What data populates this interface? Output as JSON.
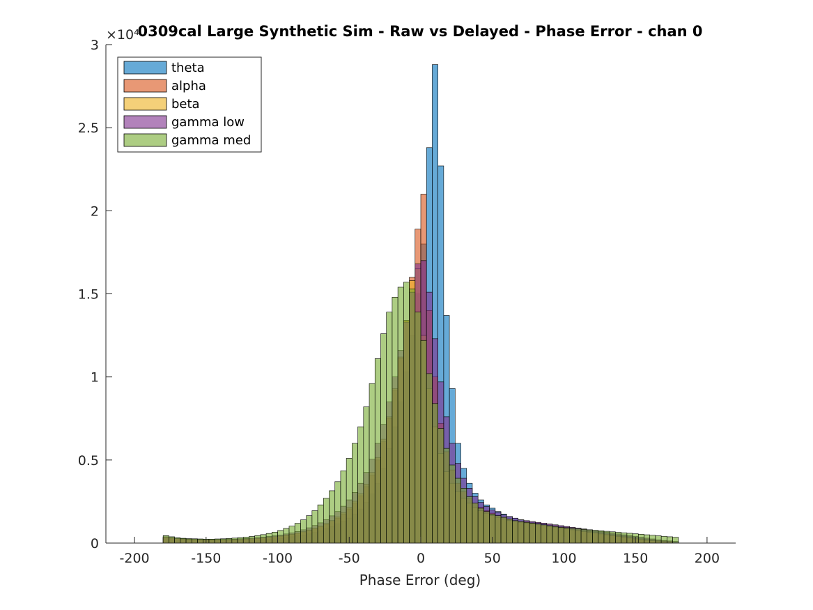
{
  "chart_data": {
    "type": "bar",
    "title": "0309cal Large Synthetic Sim - Raw vs Delayed - Phase Error - chan 0",
    "xlabel": "Phase Error (deg)",
    "ylabel": "",
    "y_exponent_label": "×10⁴",
    "xlim": [
      -220,
      220
    ],
    "ylim": [
      0,
      30000
    ],
    "xticks": [
      -200,
      -150,
      -100,
      -50,
      0,
      50,
      100,
      150,
      200
    ],
    "xtick_labels": [
      "-200",
      "-150",
      "-100",
      "-50",
      "0",
      "50",
      "100",
      "150",
      "200"
    ],
    "yticks": [
      0,
      5000,
      10000,
      15000,
      20000,
      25000,
      30000
    ],
    "ytick_labels": [
      "0",
      "0.5",
      "1",
      "1.5",
      "2",
      "2.5",
      "3"
    ],
    "bin_edges_start": -180,
    "bin_width": 4,
    "legend_position": "top-left",
    "grid": false,
    "series": [
      {
        "name": "theta",
        "color": "#0072BD",
        "values": [
          300,
          250,
          200,
          180,
          160,
          150,
          140,
          130,
          130,
          130,
          130,
          140,
          150,
          160,
          170,
          180,
          200,
          210,
          230,
          260,
          290,
          330,
          380,
          430,
          480,
          550,
          640,
          740,
          860,
          1000,
          1150,
          1300,
          1500,
          1750,
          2050,
          2450,
          2950,
          3600,
          4500,
          5700,
          7000,
          8500,
          10300,
          12500,
          15000,
          18000,
          23800,
          28800,
          22700,
          13700,
          9300,
          6000,
          4500,
          3600,
          3000,
          2600,
          2300,
          2100,
          1900,
          1750,
          1600,
          1500,
          1400,
          1300,
          1250,
          1200,
          1150,
          1100,
          1050,
          1000,
          950,
          900,
          850,
          800,
          750,
          700,
          650,
          600,
          550,
          500,
          450,
          400,
          350,
          300,
          250,
          200,
          150,
          120,
          100,
          80
        ]
      },
      {
        "name": "alpha",
        "color": "#D95319",
        "values": [
          350,
          300,
          260,
          230,
          210,
          200,
          190,
          180,
          180,
          180,
          180,
          190,
          200,
          210,
          230,
          250,
          270,
          300,
          330,
          360,
          400,
          450,
          510,
          580,
          660,
          750,
          860,
          980,
          1130,
          1300,
          1500,
          1750,
          2050,
          2400,
          2850,
          3400,
          4100,
          5000,
          6100,
          7500,
          9200,
          11100,
          13400,
          16000,
          18900,
          21000,
          14000,
          10000,
          7200,
          5500,
          4400,
          3600,
          3100,
          2700,
          2400,
          2150,
          1950,
          1800,
          1650,
          1550,
          1450,
          1350,
          1300,
          1250,
          1200,
          1150,
          1100,
          1050,
          1000,
          950,
          900,
          850,
          800,
          750,
          700,
          650,
          600,
          550,
          500,
          450,
          400,
          350,
          300,
          250,
          200,
          170,
          140,
          110,
          90
        ]
      },
      {
        "name": "beta",
        "color": "#EDB120",
        "values": [
          350,
          300,
          270,
          240,
          220,
          210,
          200,
          190,
          190,
          190,
          190,
          200,
          210,
          220,
          240,
          260,
          290,
          320,
          350,
          390,
          430,
          480,
          540,
          610,
          690,
          790,
          900,
          1030,
          1180,
          1360,
          1580,
          1840,
          2150,
          2520,
          2980,
          3550,
          4250,
          5150,
          6250,
          7600,
          9300,
          11200,
          13400,
          15800,
          16500,
          12500,
          9300,
          7000,
          5400,
          4300,
          3600,
          3100,
          2700,
          2400,
          2150,
          1950,
          1800,
          1650,
          1550,
          1450,
          1350,
          1300,
          1250,
          1200,
          1150,
          1100,
          1050,
          1000,
          950,
          900,
          850,
          800,
          750,
          700,
          650,
          600,
          550,
          500,
          450,
          400,
          350,
          300,
          250,
          200,
          170,
          140,
          110,
          90
        ]
      },
      {
        "name": "gamma low",
        "color": "#7E2F8E",
        "values": [
          380,
          330,
          290,
          260,
          240,
          230,
          220,
          210,
          210,
          210,
          220,
          230,
          240,
          260,
          280,
          300,
          330,
          360,
          400,
          440,
          490,
          550,
          620,
          700,
          800,
          920,
          1060,
          1220,
          1410,
          1640,
          1900,
          2220,
          2600,
          3050,
          3600,
          4250,
          5050,
          6000,
          7150,
          8500,
          10000,
          11600,
          13300,
          15100,
          16800,
          17000,
          15100,
          12300,
          9700,
          7600,
          6000,
          4800,
          3900,
          3300,
          2800,
          2450,
          2200,
          2000,
          1850,
          1700,
          1600,
          1500,
          1400,
          1350,
          1300,
          1250,
          1200,
          1150,
          1100,
          1050,
          1000,
          950,
          900,
          850,
          800,
          750,
          700,
          650,
          600,
          550,
          500,
          450,
          400,
          350,
          300,
          250,
          200,
          160,
          130,
          100
        ]
      },
      {
        "name": "gamma med",
        "color": "#77AC30",
        "values": [
          450,
          380,
          320,
          290,
          270,
          260,
          250,
          240,
          240,
          250,
          260,
          280,
          300,
          330,
          360,
          400,
          450,
          510,
          580,
          660,
          760,
          880,
          1020,
          1190,
          1400,
          1650,
          1950,
          2300,
          2700,
          3150,
          3700,
          4350,
          5100,
          6000,
          7000,
          8200,
          9600,
          11100,
          12600,
          13900,
          14800,
          15400,
          15700,
          15300,
          13900,
          12200,
          10200,
          8400,
          6900,
          5700,
          4700,
          3900,
          3300,
          2800,
          2400,
          2100,
          1900,
          1750,
          1650,
          1550,
          1450,
          1350,
          1300,
          1250,
          1200,
          1150,
          1100,
          1050,
          1000,
          950,
          920,
          890,
          860,
          830,
          800,
          770,
          740,
          710,
          680,
          650,
          620,
          590,
          560,
          530,
          500,
          470,
          440,
          410,
          380,
          350
        ]
      }
    ]
  }
}
